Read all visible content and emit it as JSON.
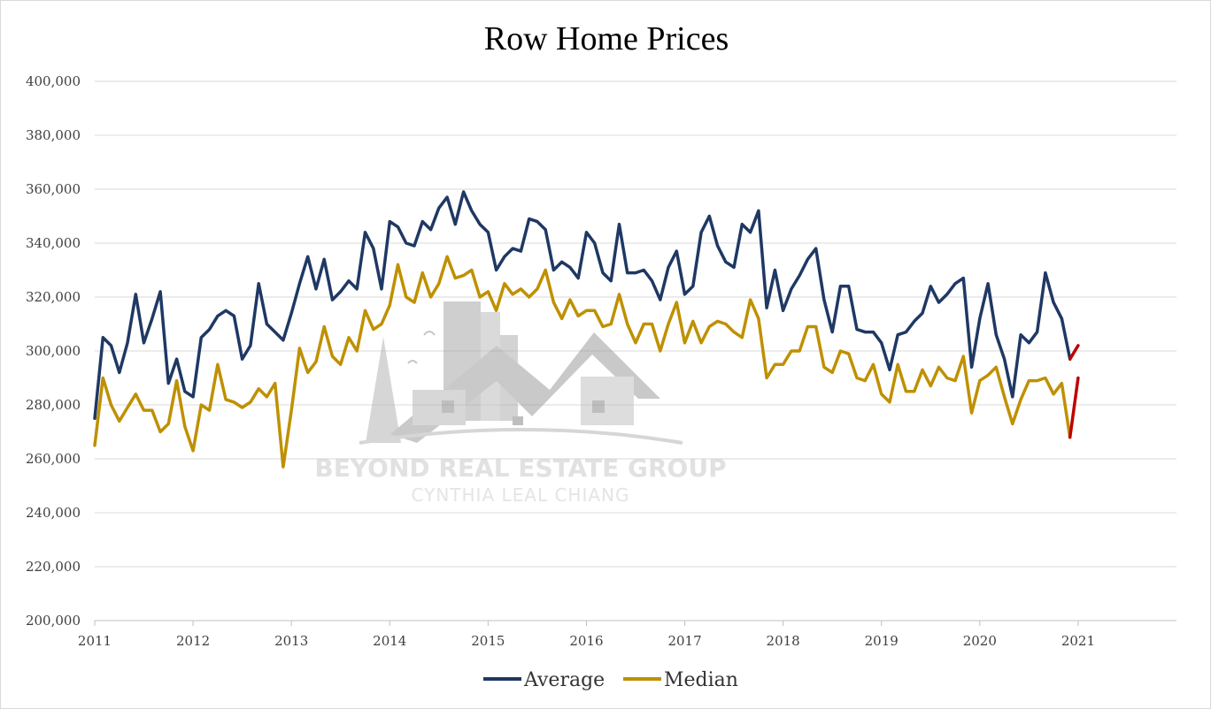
{
  "chart_data": {
    "type": "line",
    "title": "Row Home Prices",
    "xlabel": "",
    "ylabel": "",
    "ylim": [
      200000,
      400000
    ],
    "xlim": [
      2011,
      2022
    ],
    "yticks": [
      "200,000",
      "220,000",
      "240,000",
      "260,000",
      "280,000",
      "300,000",
      "320,000",
      "340,000",
      "360,000",
      "380,000",
      "400,000"
    ],
    "xticks": [
      "2011",
      "2012",
      "2013",
      "2014",
      "2015",
      "2016",
      "2017",
      "2018",
      "2019",
      "2020",
      "2021"
    ],
    "grid": true,
    "legend_position": "bottom",
    "x_start": "2011-01",
    "x_step": "month",
    "series": [
      {
        "name": "Average",
        "color": "#1f3864",
        "values": [
          275000,
          305000,
          302000,
          292000,
          303000,
          321000,
          303000,
          312000,
          322000,
          288000,
          297000,
          285000,
          283000,
          305000,
          308000,
          313000,
          315000,
          313000,
          297000,
          302000,
          325000,
          310000,
          307000,
          304000,
          314000,
          325000,
          335000,
          323000,
          334000,
          319000,
          322000,
          326000,
          323000,
          344000,
          338000,
          323000,
          348000,
          346000,
          340000,
          339000,
          348000,
          345000,
          353000,
          357000,
          347000,
          359000,
          352000,
          347000,
          344000,
          330000,
          335000,
          338000,
          337000,
          349000,
          348000,
          345000,
          330000,
          333000,
          331000,
          327000,
          344000,
          340000,
          329000,
          326000,
          347000,
          329000,
          329000,
          330000,
          326000,
          319000,
          331000,
          337000,
          321000,
          324000,
          344000,
          350000,
          339000,
          333000,
          331000,
          347000,
          344000,
          352000,
          316000,
          330000,
          315000,
          323000,
          328000,
          334000,
          338000,
          319000,
          307000,
          324000,
          324000,
          308000,
          307000,
          307000,
          303000,
          293000,
          306000,
          307000,
          311000,
          314000,
          324000,
          318000,
          321000,
          325000,
          327000,
          294000,
          312000,
          325000,
          306000,
          297000,
          283000,
          306000,
          303000,
          307000,
          329000,
          318000,
          312000,
          297000,
          302000
        ],
        "highlight_color": "#c00000",
        "highlight_from_index": 119
      },
      {
        "name": "Median",
        "color": "#bf9000",
        "values": [
          265000,
          290000,
          280000,
          274000,
          279000,
          284000,
          278000,
          278000,
          270000,
          273000,
          289000,
          272000,
          263000,
          280000,
          278000,
          295000,
          282000,
          281000,
          279000,
          281000,
          286000,
          283000,
          288000,
          257000,
          278000,
          301000,
          292000,
          296000,
          309000,
          298000,
          295000,
          305000,
          300000,
          315000,
          308000,
          310000,
          317000,
          332000,
          320000,
          318000,
          329000,
          320000,
          325000,
          335000,
          327000,
          328000,
          330000,
          320000,
          322000,
          315000,
          325000,
          321000,
          323000,
          320000,
          323000,
          330000,
          318000,
          312000,
          319000,
          313000,
          315000,
          315000,
          309000,
          310000,
          321000,
          310000,
          303000,
          310000,
          310000,
          300000,
          310000,
          318000,
          303000,
          311000,
          303000,
          309000,
          311000,
          310000,
          307000,
          305000,
          319000,
          312000,
          290000,
          295000,
          295000,
          300000,
          300000,
          309000,
          309000,
          294000,
          292000,
          300000,
          299000,
          290000,
          289000,
          295000,
          284000,
          281000,
          295000,
          285000,
          285000,
          293000,
          287000,
          294000,
          290000,
          289000,
          298000,
          277000,
          289000,
          291000,
          294000,
          283000,
          273000,
          282000,
          289000,
          289000,
          290000,
          284000,
          288000,
          268000,
          290000
        ],
        "highlight_color": "#c00000",
        "highlight_from_index": 119
      }
    ]
  },
  "watermark": {
    "line1": "BEYOND REAL ESTATE GROUP",
    "line2": "CYNTHIA LEAL CHIANG",
    "icon": "house-skyline-logo"
  }
}
